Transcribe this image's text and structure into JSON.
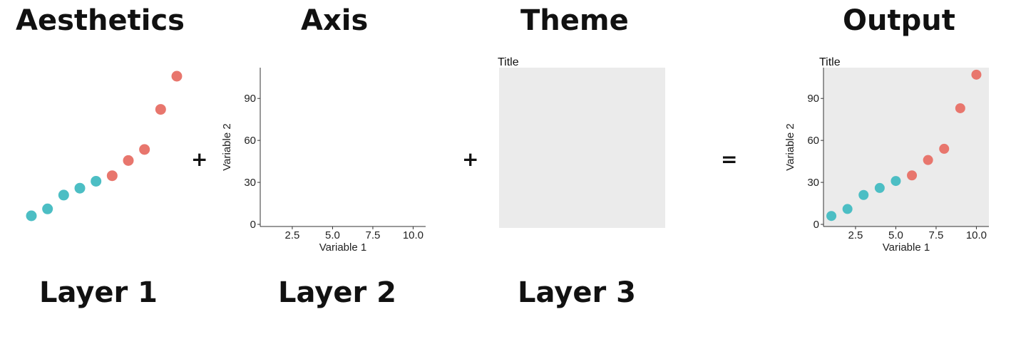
{
  "headings": {
    "aesthetics": "Aesthetics",
    "axis": "Axis",
    "theme": "Theme",
    "output": "Output"
  },
  "operators": {
    "plus1": "+",
    "plus2": "+",
    "equals": "="
  },
  "layers": {
    "layer1": "Layer 1",
    "layer2": "Layer 2",
    "layer3": "Layer 3"
  },
  "colors": {
    "group_a": "#4cbec4",
    "group_b": "#e8766d",
    "panel_bg": "#ebebeb"
  },
  "plot_text": {
    "title": "Title",
    "xlabel": "Variable 1",
    "ylabel": "Variable 2"
  },
  "chart_data": {
    "type": "scatter",
    "x": [
      1,
      2,
      3,
      4,
      5,
      6,
      7,
      8,
      9,
      10
    ],
    "y": [
      6,
      11,
      21,
      26,
      31,
      35,
      46,
      54,
      83,
      107
    ],
    "group": [
      "a",
      "a",
      "a",
      "a",
      "a",
      "b",
      "b",
      "b",
      "b",
      "b"
    ],
    "xticks": [
      "2.5",
      "5.0",
      "7.5",
      "10.0"
    ],
    "yticks": [
      "0",
      "30",
      "60",
      "90"
    ],
    "xlim": [
      0.5,
      10.5
    ],
    "ylim": [
      0,
      112
    ],
    "xlabel": "Variable 1",
    "ylabel": "Variable 2",
    "title": "Title"
  }
}
